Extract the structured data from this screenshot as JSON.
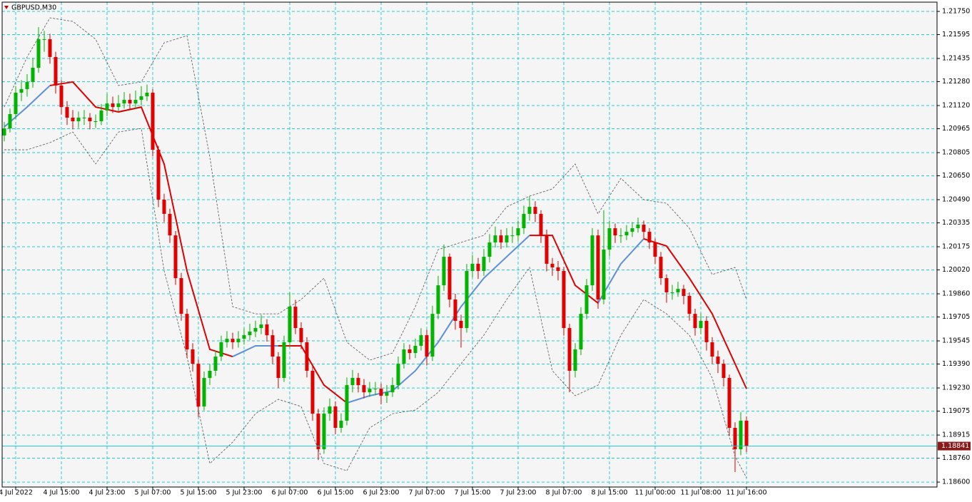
{
  "chart_data": {
    "type": "candlestick",
    "title": "GBPUSD,M30",
    "up_color": "#00b400",
    "down_color": "#e00000",
    "grid": true,
    "grid_color": "#20d0d8",
    "xlim": [
      -0.375,
      163.375
    ],
    "ylim": [
      1.18567,
      1.21812
    ],
    "open": [
      1.2092,
      1.20967,
      1.21063,
      1.21206,
      1.2123,
      1.21278,
      1.21373,
      1.21564,
      1.21564,
      1.21445,
      1.21254,
      1.2111,
      1.21039,
      1.21015,
      1.21039,
      1.21039,
      1.21015,
      1.21015,
      1.21087,
      1.21134,
      1.2111,
      1.21134,
      1.21158,
      1.21134,
      1.21158,
      1.21182,
      1.21206,
      1.20824,
      1.2049,
      1.20395,
      1.20251,
      1.19965,
      1.19726,
      1.19488,
      1.19392,
      1.19106,
      1.19297,
      1.19345,
      1.1944,
      1.19536,
      1.19559,
      1.19536,
      1.19559,
      1.19583,
      1.19607,
      1.19631,
      1.19655,
      1.19583,
      1.1944,
      1.19297,
      1.19536,
      1.19774,
      1.19631,
      1.19536,
      1.19345,
      1.19058,
      1.1882,
      1.19058,
      1.19106,
      1.18963,
      1.19011,
      1.19249,
      1.19297,
      1.19249,
      1.19201,
      1.19225,
      1.19225,
      1.19178,
      1.19201,
      1.19249,
      1.19392,
      1.19488,
      1.19464,
      1.19512,
      1.19583,
      1.1944,
      1.19726,
      1.19917,
      1.20108,
      1.19822,
      1.19679,
      1.19631,
      1.20013,
      1.20061,
      1.20013,
      1.20108,
      1.20204,
      1.20251,
      1.20204,
      1.20251,
      1.20251,
      1.20299,
      1.20395,
      1.20442,
      1.20395,
      1.20251,
      1.20061,
      1.20037,
      1.20013,
      1.19631,
      1.19345,
      1.19488,
      1.19726,
      1.19917,
      1.20251,
      1.19822,
      1.20156,
      1.20299,
      1.20251,
      1.20251,
      1.20275,
      1.20299,
      1.20323,
      1.20275,
      1.20204,
      1.20108,
      1.19965,
      1.1987,
      1.1987,
      1.19893,
      1.19846,
      1.19726,
      1.19631,
      1.19679,
      1.19536,
      1.1944,
      1.19392,
      1.19297,
      1.18963,
      1.1882,
      1.19011
    ],
    "high": [
      1.2101,
      1.211,
      1.2125,
      1.2129,
      1.2133,
      1.2144,
      1.21645,
      1.2162,
      1.216,
      1.2148,
      1.2129,
      1.2115,
      1.2109,
      1.2108,
      1.2109,
      1.2107,
      1.2106,
      1.2113,
      1.212,
      1.2118,
      1.2119,
      1.2121,
      1.212,
      1.2122,
      1.2125,
      1.2126,
      1.2123,
      1.2085,
      1.2053,
      1.2043,
      1.2028,
      1.2,
      1.1976,
      1.1953,
      1.1942,
      1.1934,
      1.1939,
      1.1948,
      1.1958,
      1.1961,
      1.196,
      1.1961,
      1.1963,
      1.1966,
      1.1968,
      1.1972,
      1.1969,
      1.1962,
      1.1947,
      1.1958,
      1.1987,
      1.1982,
      1.1967,
      1.1957,
      1.1938,
      1.1909,
      1.191,
      1.1916,
      1.1914,
      1.1906,
      1.193,
      1.1935,
      1.1933,
      1.1929,
      1.1927,
      1.1927,
      1.1926,
      1.1925,
      1.193,
      1.1944,
      1.1953,
      1.1952,
      1.1956,
      1.1963,
      1.1962,
      1.1978,
      1.1998,
      1.2019,
      1.2013,
      1.1986,
      1.1972,
      1.2006,
      1.2012,
      1.201,
      1.2016,
      1.2026,
      1.2031,
      1.2029,
      1.203,
      1.2031,
      1.2035,
      1.2045,
      1.20514,
      1.2048,
      1.2042,
      1.2029,
      1.201,
      1.2008,
      1.2004,
      1.1966,
      1.1953,
      1.1977,
      1.1996,
      1.203,
      1.2029,
      1.2042,
      1.2035,
      1.2033,
      1.203,
      1.2032,
      1.2034,
      1.2037,
      1.2035,
      1.203,
      1.2023,
      1.2014,
      1.1999,
      1.1992,
      1.1994,
      1.1992,
      1.1987,
      1.1976,
      1.1973,
      1.1971,
      1.1957,
      1.1948,
      1.1942,
      1.1932,
      1.19,
      1.1907,
      1.1904
    ],
    "low": [
      1.2088,
      1.2094,
      1.2103,
      1.2115,
      1.2118,
      1.2124,
      1.2134,
      1.2148,
      1.214,
      1.212,
      1.2106,
      1.2099,
      1.2096,
      1.2097,
      1.2099,
      1.2096,
      1.2097,
      1.2099,
      1.2105,
      1.2107,
      1.2108,
      1.211,
      1.2109,
      1.211,
      1.2112,
      1.2115,
      1.2078,
      1.2044,
      1.2034,
      1.202,
      1.1992,
      1.1968,
      1.1943,
      1.1934,
      1.19034,
      1.1908,
      1.1925,
      1.1931,
      1.1941,
      1.195,
      1.1949,
      1.195,
      1.1952,
      1.1955,
      1.1957,
      1.1959,
      1.1954,
      1.1939,
      1.1923,
      1.1927,
      1.195,
      1.1959,
      1.1949,
      1.193,
      1.1901,
      1.18748,
      1.1879,
      1.1901,
      1.1892,
      1.1893,
      1.1898,
      1.192,
      1.192,
      1.1916,
      1.1917,
      1.1918,
      1.1912,
      1.1913,
      1.1917,
      1.1922,
      1.1936,
      1.1942,
      1.1943,
      1.1948,
      1.1938,
      1.1941,
      1.1969,
      1.1988,
      1.1977,
      1.1962,
      1.195,
      1.196,
      1.1997,
      1.1996,
      1.1998,
      1.2007,
      1.2017,
      1.2016,
      1.2017,
      1.202,
      1.2021,
      1.2026,
      1.2035,
      1.2034,
      1.202,
      1.2001,
      1.1998,
      1.1995,
      1.1958,
      1.19201,
      1.193,
      1.1945,
      1.1969,
      1.1988,
      1.1976,
      1.1979,
      1.2011,
      1.202,
      1.202,
      1.2022,
      1.2024,
      1.2027,
      1.2023,
      1.2016,
      1.2006,
      1.1992,
      1.198,
      1.1982,
      1.1984,
      1.1979,
      1.1968,
      1.1958,
      1.1959,
      1.1948,
      1.1939,
      1.1933,
      1.1924,
      1.1891,
      1.18667,
      1.1878,
      1.188
    ],
    "close": [
      1.20967,
      1.21063,
      1.21206,
      1.2123,
      1.21278,
      1.21373,
      1.21564,
      1.21564,
      1.21445,
      1.21254,
      1.2111,
      1.21039,
      1.21015,
      1.21039,
      1.21039,
      1.21015,
      1.21015,
      1.21087,
      1.21134,
      1.2111,
      1.21134,
      1.21158,
      1.21134,
      1.21158,
      1.21182,
      1.21206,
      1.20824,
      1.2049,
      1.20395,
      1.20251,
      1.19965,
      1.19726,
      1.19488,
      1.19392,
      1.19106,
      1.19297,
      1.19345,
      1.1944,
      1.19536,
      1.19559,
      1.19536,
      1.19559,
      1.19583,
      1.19607,
      1.19631,
      1.19655,
      1.19583,
      1.1944,
      1.19297,
      1.19536,
      1.19774,
      1.19631,
      1.19536,
      1.19345,
      1.19058,
      1.1882,
      1.19058,
      1.19106,
      1.18963,
      1.19011,
      1.19249,
      1.19297,
      1.19249,
      1.19201,
      1.19225,
      1.19225,
      1.19178,
      1.19201,
      1.19249,
      1.19392,
      1.19488,
      1.19464,
      1.19512,
      1.19583,
      1.1944,
      1.19726,
      1.19917,
      1.20108,
      1.19822,
      1.19679,
      1.19631,
      1.20013,
      1.20061,
      1.20013,
      1.20108,
      1.20204,
      1.20251,
      1.20204,
      1.20251,
      1.20251,
      1.20299,
      1.20395,
      1.20442,
      1.20395,
      1.20251,
      1.20061,
      1.20037,
      1.20013,
      1.19631,
      1.19345,
      1.19488,
      1.19726,
      1.19917,
      1.20251,
      1.19822,
      1.20156,
      1.20299,
      1.20251,
      1.20251,
      1.20275,
      1.20299,
      1.20323,
      1.20275,
      1.20204,
      1.20108,
      1.19965,
      1.1987,
      1.1987,
      1.19893,
      1.19846,
      1.19726,
      1.19631,
      1.19679,
      1.19536,
      1.1944,
      1.19392,
      1.19297,
      1.18963,
      1.1882,
      1.19011,
      1.18841
    ],
    "current_price": 1.18841,
    "current_price_color": "#8b1a1a",
    "series_x": [
      0,
      4,
      8,
      12,
      16,
      20,
      24,
      28,
      32,
      36,
      40,
      44,
      48,
      52,
      56,
      60,
      64,
      68,
      72,
      76,
      80,
      84,
      88,
      92,
      96,
      100,
      104,
      108,
      112,
      116,
      120,
      124,
      128,
      130
    ],
    "series": [
      {
        "color": "#5b8fd9",
        "style": "solid",
        "values": [
          1.20977,
          1.2111,
          1.21254,
          null,
          null,
          1.21077,
          1.2111,
          null,
          null,
          null,
          1.1944,
          1.19512,
          1.19512,
          null,
          null,
          1.1913,
          1.19178,
          1.19211,
          1.19345,
          1.19536,
          1.19774,
          1.19965,
          1.20108,
          1.20251,
          null,
          null,
          1.19798,
          1.20061,
          1.20228,
          null,
          null,
          null,
          null,
          null
        ]
      },
      {
        "color": "#dd0000",
        "style": "solid",
        "values": [
          null,
          null,
          1.21254,
          1.21278,
          1.2111,
          1.21077,
          1.2111,
          1.20729,
          1.20013,
          1.19488,
          1.1944,
          null,
          1.19512,
          1.19512,
          1.19249,
          1.1913,
          null,
          null,
          null,
          null,
          null,
          null,
          null,
          1.20251,
          1.20251,
          1.19917,
          1.19798,
          null,
          1.20228,
          1.2018,
          1.19965,
          1.19726,
          1.19392,
          1.19225
        ]
      },
      {
        "color": "#555555",
        "style": "dashed",
        "values": [
          1.2111,
          1.21445,
          1.21707,
          1.21683,
          1.21564,
          1.21254,
          1.21278,
          1.2154,
          1.21588,
          1.20776,
          1.19774,
          1.19726,
          1.19726,
          1.19822,
          1.19965,
          1.19536,
          1.19416,
          1.19464,
          1.19774,
          1.20156,
          1.20204,
          1.20251,
          1.20442,
          1.20514,
          1.20562,
          1.20729,
          1.20395,
          1.20633,
          1.2049,
          1.20466,
          1.20299,
          1.19989,
          1.20037,
          1.19822
        ]
      },
      {
        "color": "#555555",
        "style": "dashed",
        "values": [
          1.20824,
          1.20824,
          1.20872,
          1.20943,
          1.20729,
          1.20943,
          1.20967,
          1.20013,
          1.1944,
          1.18724,
          1.18867,
          1.19058,
          1.19154,
          1.19106,
          1.18724,
          1.18676,
          1.18963,
          1.19058,
          1.19082,
          1.19201,
          1.19392,
          1.19583,
          1.19822,
          1.20037,
          1.19345,
          1.19178,
          1.19249,
          1.19583,
          1.19822,
          1.19726,
          1.19583,
          1.19297,
          1.18772,
          1.18629
        ]
      }
    ],
    "xticks": [
      {
        "value": 2,
        "label": "4 Jul 2022"
      },
      {
        "value": 10,
        "label": "4 Jul 15:00"
      },
      {
        "value": 18,
        "label": "4 Jul 23:00"
      },
      {
        "value": 26,
        "label": "5 Jul 07:00"
      },
      {
        "value": 34,
        "label": "5 Jul 15:00"
      },
      {
        "value": 42,
        "label": "5 Jul 23:00"
      },
      {
        "value": 50,
        "label": "6 Jul 07:00"
      },
      {
        "value": 58,
        "label": "6 Jul 15:00"
      },
      {
        "value": 66,
        "label": "6 Jul 23:00"
      },
      {
        "value": 74,
        "label": "7 Jul 07:00"
      },
      {
        "value": 82,
        "label": "7 Jul 15:00"
      },
      {
        "value": 90,
        "label": "7 Jul 23:00"
      },
      {
        "value": 98,
        "label": "8 Jul 07:00"
      },
      {
        "value": 106,
        "label": "8 Jul 15:00"
      },
      {
        "value": 114,
        "label": "11 Jul 00:00"
      },
      {
        "value": 122,
        "label": "11 Jul 08:00"
      },
      {
        "value": 130,
        "label": "11 Jul 16:00"
      }
    ],
    "yticks": [
      {
        "value": 1.2175,
        "label": "1.21750"
      },
      {
        "value": 1.21595,
        "label": "1.21595"
      },
      {
        "value": 1.21435,
        "label": "1.21435"
      },
      {
        "value": 1.2128,
        "label": "1.21280"
      },
      {
        "value": 1.2112,
        "label": "1.21120"
      },
      {
        "value": 1.20965,
        "label": "1.20965"
      },
      {
        "value": 1.20805,
        "label": "1.20805"
      },
      {
        "value": 1.2065,
        "label": "1.20650"
      },
      {
        "value": 1.2049,
        "label": "1.20490"
      },
      {
        "value": 1.20335,
        "label": "1.20335"
      },
      {
        "value": 1.20175,
        "label": "1.20175"
      },
      {
        "value": 1.2002,
        "label": "1.20020"
      },
      {
        "value": 1.1986,
        "label": "1.19860"
      },
      {
        "value": 1.19705,
        "label": "1.19705"
      },
      {
        "value": 1.19545,
        "label": "1.19545"
      },
      {
        "value": 1.1939,
        "label": "1.19390"
      },
      {
        "value": 1.1923,
        "label": "1.19230"
      },
      {
        "value": 1.19075,
        "label": "1.19075"
      },
      {
        "value": 1.18915,
        "label": "1.18915"
      },
      {
        "value": 1.1876,
        "label": "1.18760"
      },
      {
        "value": 1.186,
        "label": "1.18600"
      }
    ]
  }
}
